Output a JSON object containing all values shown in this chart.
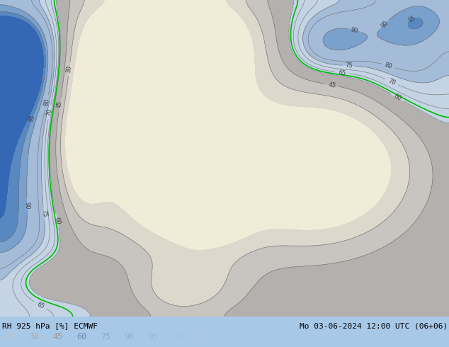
{
  "title_left": "RH 925 hPa [%] ECMWF",
  "title_right": "Mo 03-06-2024 12:00 UTC (06+06)",
  "legend_values": [
    15,
    30,
    45,
    60,
    75,
    90,
    95,
    99,
    100
  ],
  "fill_colors": [
    "#f5f0e0",
    "#d8d4c8",
    "#c4c0b8",
    "#b0acaa",
    "#c8d8e8",
    "#a8c4dc",
    "#88aed0",
    "#6898c4",
    "#4878b0",
    "#2858a0"
  ],
  "contour_color": "#707070",
  "green_color": "#00bb00",
  "bg_color": "#a8c8e8",
  "fig_width": 6.34,
  "fig_height": 4.9,
  "dpi": 100
}
